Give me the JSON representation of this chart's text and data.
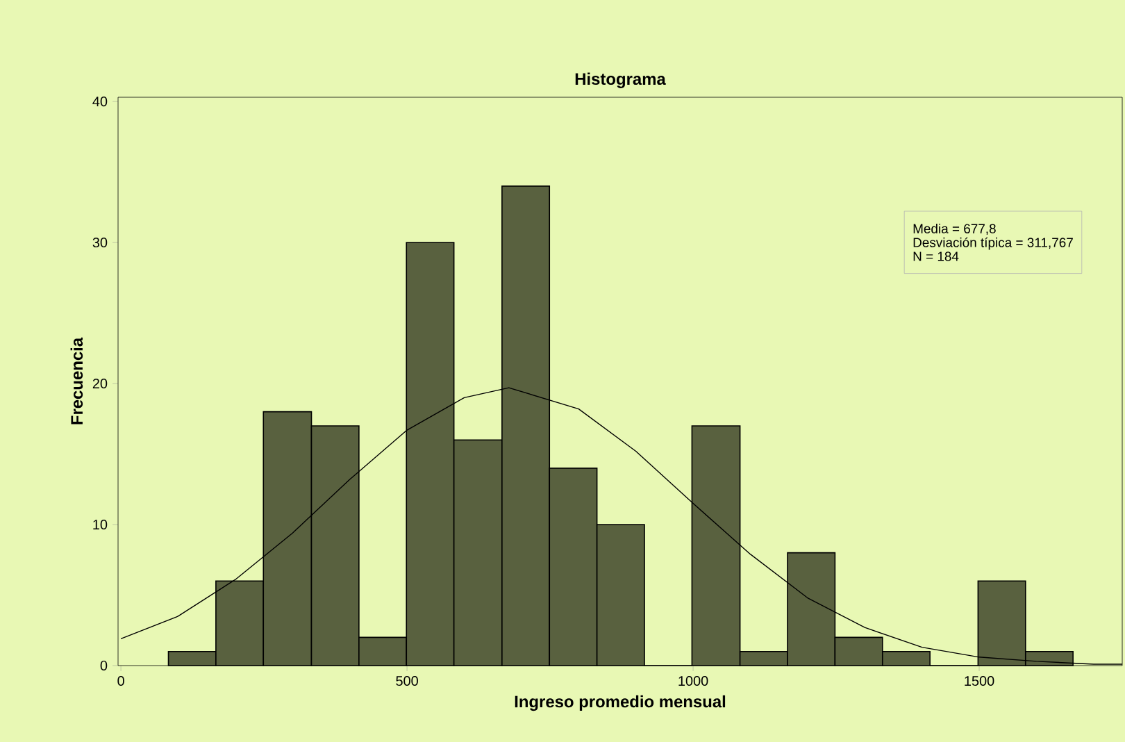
{
  "chart_data": {
    "type": "histogram",
    "title": "Histograma",
    "xlabel": "Ingreso promedio mensual",
    "ylabel": "Frecuencia",
    "bins": [
      83,
      166,
      249,
      333,
      416,
      499,
      582,
      666,
      749,
      832,
      915,
      998,
      1082,
      1165,
      1248,
      1331,
      1414,
      1498,
      1581,
      1664
    ],
    "values": [
      1,
      6,
      18,
      17,
      2,
      30,
      16,
      34,
      14,
      10,
      0,
      17,
      1,
      8,
      2,
      1,
      0,
      6,
      1
    ],
    "color": "#59613f",
    "xlim": [
      -5,
      1750
    ],
    "xticks": [
      0,
      500,
      1000,
      1500
    ],
    "ylim": [
      0,
      40.3
    ],
    "yticks": [
      0,
      10,
      20,
      30,
      40
    ],
    "grid": false,
    "series": [
      {
        "type": "line",
        "color": "#000000",
        "x": [
          0,
          100,
          200,
          300,
          400,
          500,
          600,
          678,
          800,
          900,
          1000,
          1100,
          1200,
          1300,
          1400,
          1500,
          1600,
          1700,
          1750
        ],
        "values": [
          1.9,
          3.5,
          6.1,
          9.4,
          13.2,
          16.7,
          19.0,
          19.7,
          18.2,
          15.2,
          11.5,
          7.9,
          4.8,
          2.7,
          1.3,
          0.6,
          0.3,
          0.1,
          0.1
        ]
      }
    ],
    "annotations": [
      "Media = 677,8",
      "Desviación típica = 311,767",
      "N = 184"
    ]
  }
}
